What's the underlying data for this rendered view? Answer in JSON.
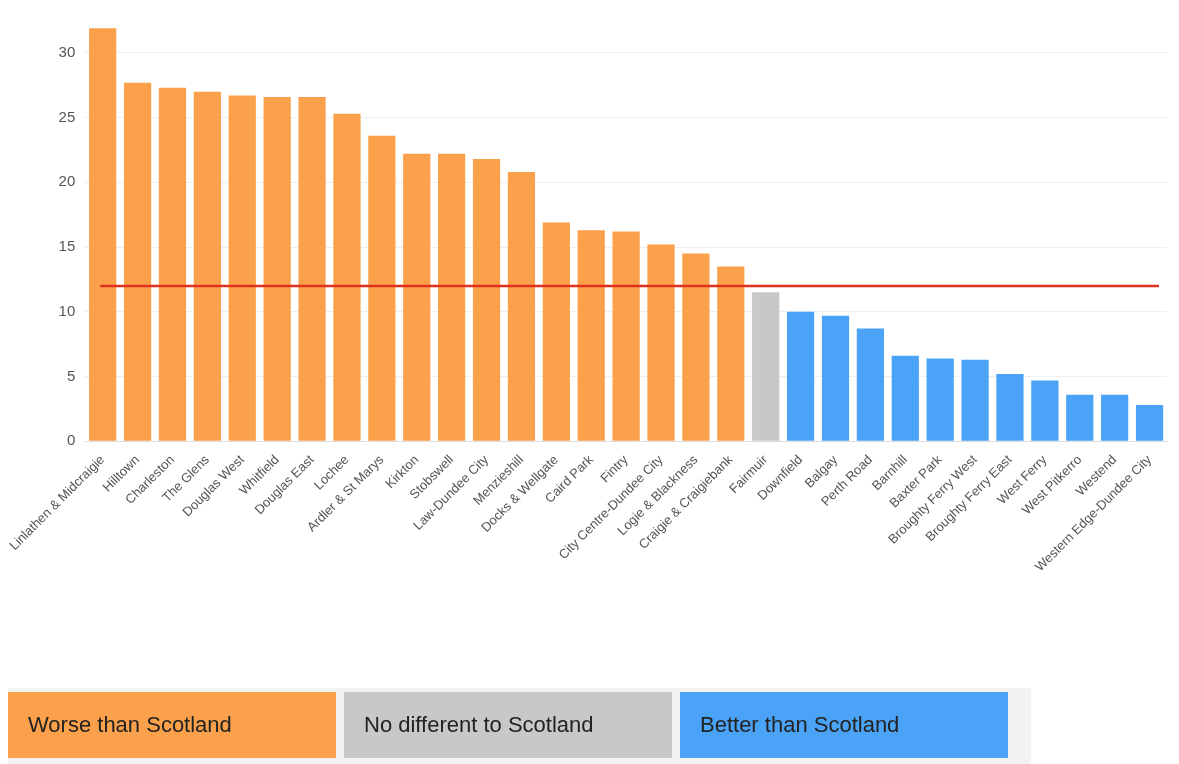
{
  "chart_data": {
    "type": "bar",
    "stacked": true,
    "categories": [
      "Linlathen & Midcraigie",
      "Hilltown",
      "Charleston",
      "The Glens",
      "Douglas West",
      "Whitfield",
      "Douglas East",
      "Lochee",
      "Ardler & St Marys",
      "Kirkton",
      "Stobswell",
      "Law-Dundee City",
      "Menzieshill",
      "Docks & Wellgate",
      "Caird Park",
      "Fintry",
      "City Centre-Dundee City",
      "Logie & Blackness",
      "Craigie & Craigiebank",
      "Fairmuir",
      "Downfield",
      "Balgay",
      "Perth Road",
      "Barnhill",
      "Baxter Park",
      "Broughty Ferry West",
      "Broughty Ferry East",
      "West Ferry",
      "West Pitkerro",
      "Westend",
      "Western Edge-Dundee City"
    ],
    "series": [
      {
        "name": "Worse than Scotland",
        "color": "#fba14b",
        "values": [
          31.9,
          27.7,
          27.3,
          27.0,
          26.7,
          26.6,
          26.6,
          25.3,
          23.6,
          22.2,
          22.2,
          21.8,
          20.8,
          16.9,
          16.3,
          16.2,
          15.2,
          14.5,
          13.5,
          null,
          null,
          null,
          null,
          null,
          null,
          null,
          null,
          null,
          null,
          null,
          null
        ]
      },
      {
        "name": "No different to Scotland",
        "color": "#c8c8c8",
        "values": [
          null,
          null,
          null,
          null,
          null,
          null,
          null,
          null,
          null,
          null,
          null,
          null,
          null,
          null,
          null,
          null,
          null,
          null,
          null,
          11.5,
          null,
          null,
          null,
          null,
          null,
          null,
          null,
          null,
          null,
          null,
          null
        ]
      },
      {
        "name": "Better than Scotland",
        "color": "#4ba3f7",
        "values": [
          null,
          null,
          null,
          null,
          null,
          null,
          null,
          null,
          null,
          null,
          null,
          null,
          null,
          null,
          null,
          null,
          null,
          null,
          null,
          null,
          10.0,
          9.7,
          8.7,
          6.6,
          6.4,
          6.3,
          5.2,
          4.7,
          3.6,
          3.6,
          2.8
        ]
      }
    ],
    "ylim": [
      0,
      32
    ],
    "yticks": [
      0,
      5,
      10,
      15,
      20,
      25,
      30
    ],
    "grid": "y",
    "legend": "bottom",
    "ref_lines": [
      {
        "axis": "y",
        "value": 12,
        "color": "#e0301e"
      }
    ]
  }
}
